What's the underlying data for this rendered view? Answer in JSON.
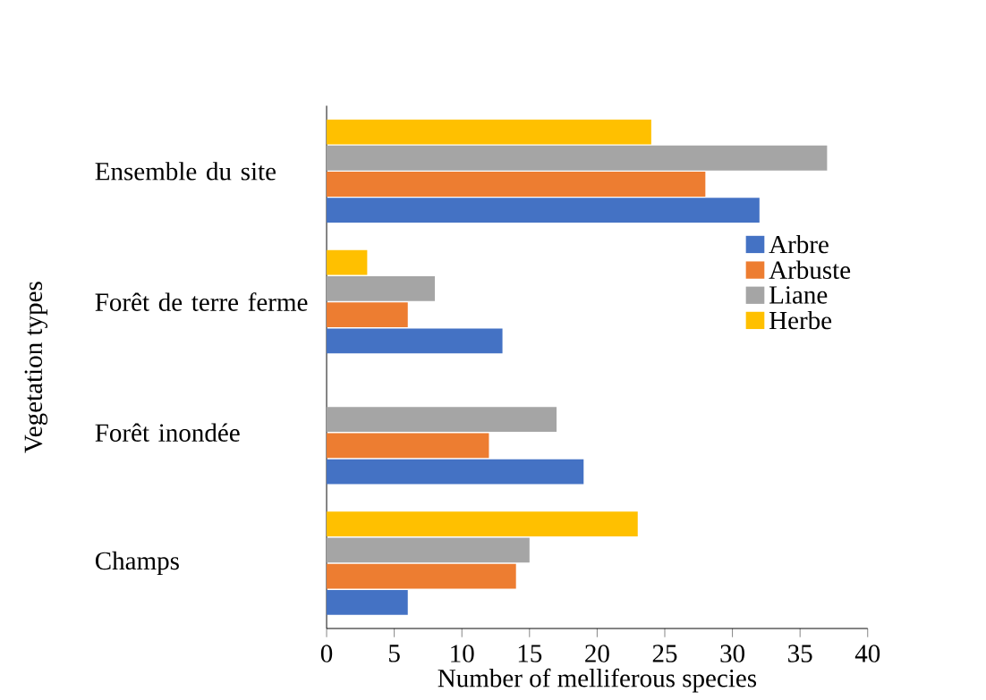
{
  "chart_data": {
    "type": "bar",
    "orientation": "horizontal",
    "xlabel": "Number of melliferous species",
    "ylabel": "Vegetation types",
    "categories": [
      "Ensemble du site",
      "Forêt de terre ferme",
      "Forêt inondée",
      "Champs"
    ],
    "series": [
      {
        "name": "Arbre",
        "color": "#4472c4",
        "values": [
          32,
          13,
          19,
          6
        ]
      },
      {
        "name": "Arbuste",
        "color": "#ed7d31",
        "values": [
          28,
          6,
          12,
          14
        ]
      },
      {
        "name": "Liane",
        "color": "#a5a5a5",
        "values": [
          37,
          8,
          17,
          15
        ]
      },
      {
        "name": "Herbe",
        "color": "#ffc000",
        "values": [
          24,
          3,
          0,
          23
        ]
      }
    ],
    "xlim": [
      0,
      40
    ],
    "xticks": [
      0,
      5,
      10,
      15,
      20,
      25,
      30,
      35,
      40
    ],
    "legend": "top right",
    "grid": false
  }
}
